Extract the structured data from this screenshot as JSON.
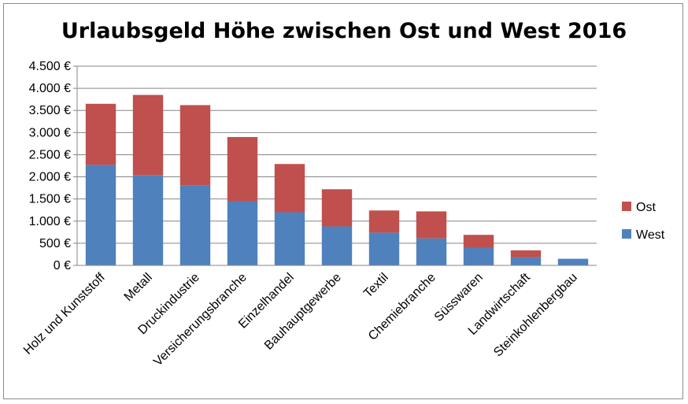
{
  "chart_data": {
    "type": "bar",
    "stacked": true,
    "title": "Urlaubsgeld Höhe zwischen Ost und West 2016",
    "categories": [
      "Holz und Kunststoff",
      "Metall",
      "Druckindustrie",
      "Versicherungsbranche",
      "Einzelhandel",
      "Bauhauptgewerbe",
      "Textil",
      "Chemiebranche",
      "Süsswaren",
      "Landwirtschaft",
      "Steinkohlenbergbau"
    ],
    "series": [
      {
        "name": "West",
        "color": "#4f81bd",
        "values": [
          2270,
          2040,
          1800,
          1450,
          1200,
          880,
          740,
          610,
          400,
          180,
          150
        ]
      },
      {
        "name": "Ost",
        "color": "#c0504d",
        "values": [
          1380,
          1810,
          1820,
          1450,
          1090,
          840,
          500,
          610,
          290,
          160,
          0
        ]
      }
    ],
    "ylim": [
      0,
      4500
    ],
    "yticks": [
      {
        "value": 0,
        "label": "0 €"
      },
      {
        "value": 500,
        "label": "500 €"
      },
      {
        "value": 1000,
        "label": "1.000 €"
      },
      {
        "value": 1500,
        "label": "1.500 €"
      },
      {
        "value": 2000,
        "label": "2.000 €"
      },
      {
        "value": 2500,
        "label": "2.500 €"
      },
      {
        "value": 3000,
        "label": "3.000 €"
      },
      {
        "value": 3500,
        "label": "3.500 €"
      },
      {
        "value": 4000,
        "label": "4.000 €"
      },
      {
        "value": 4500,
        "label": "4.500 €"
      }
    ],
    "grid": true,
    "legend": {
      "position": "right",
      "order": [
        "Ost",
        "West"
      ]
    }
  }
}
